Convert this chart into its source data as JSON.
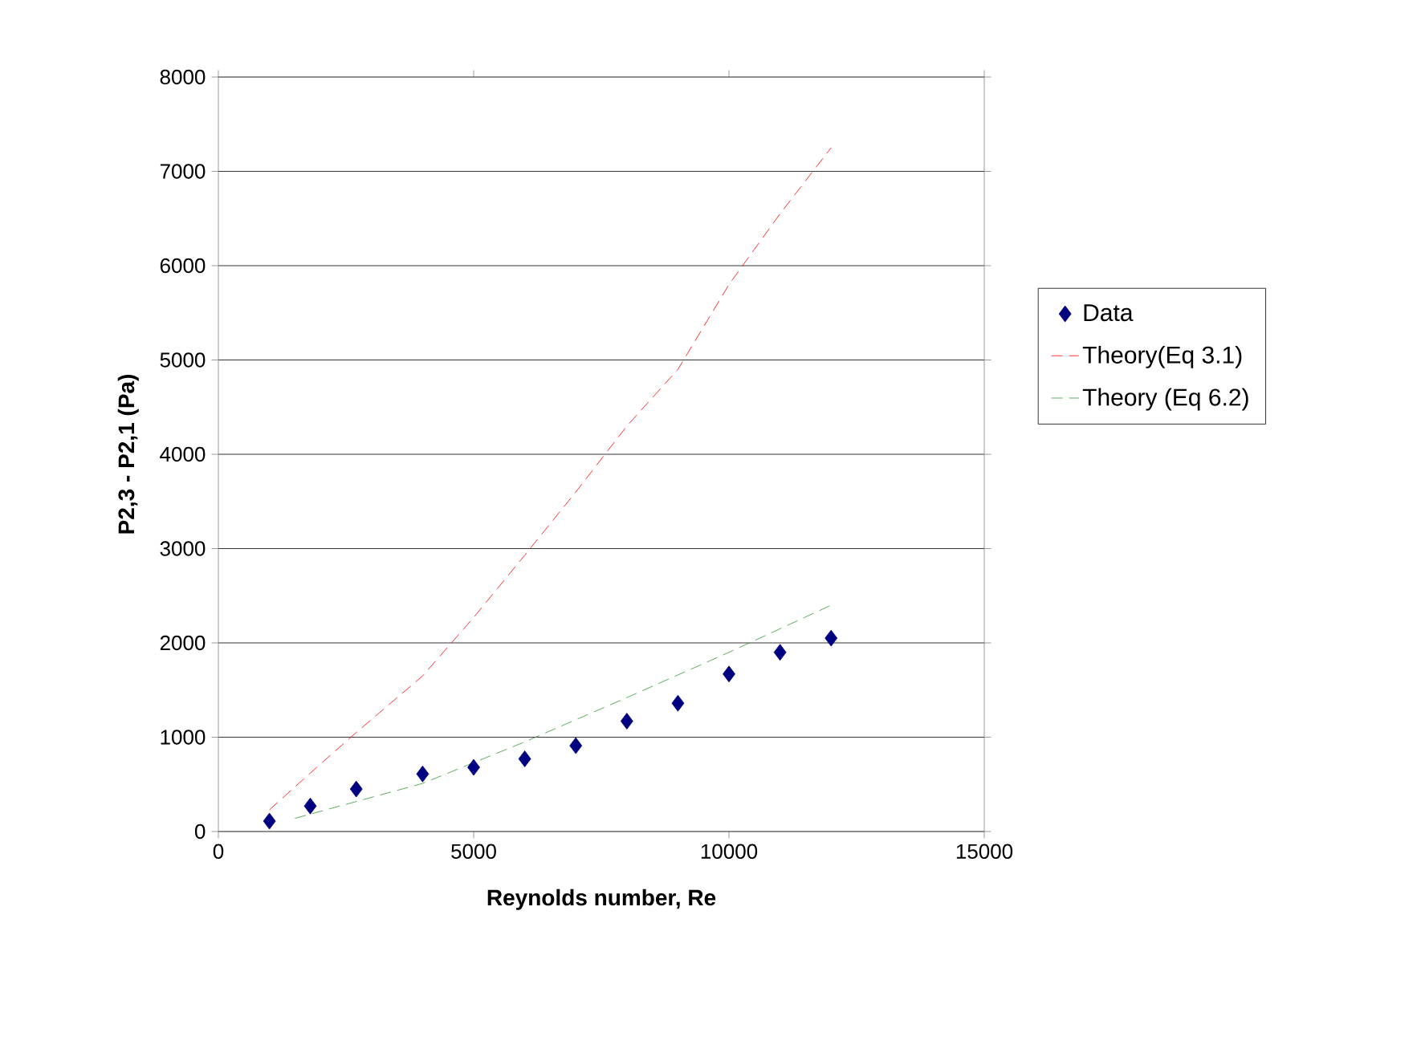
{
  "chart_data": {
    "type": "scatter",
    "xlabel": "Reynolds number, Re",
    "ylabel": "P2,3 - P2,1 (Pa)",
    "xlim": [
      0,
      15000
    ],
    "xticks": [
      0,
      5000,
      10000,
      15000
    ],
    "ylim": [
      0,
      8000
    ],
    "yticks": [
      0,
      1000,
      2000,
      3000,
      4000,
      5000,
      6000,
      7000,
      8000
    ],
    "grid": "y",
    "legend": "right",
    "series": [
      {
        "name": "Data",
        "marker": "diamond",
        "color": "#000080",
        "x": [
          1000,
          1800,
          2700,
          4000,
          5000,
          6000,
          7000,
          8000,
          9000,
          10000,
          11000,
          12000
        ],
        "values": [
          110,
          270,
          450,
          610,
          680,
          770,
          910,
          1170,
          1360,
          1670,
          1900,
          2050
        ]
      },
      {
        "name": "Theory(Eq 3.1)",
        "type": "line",
        "line_style": "dashed",
        "color": "#ff0000",
        "x": [
          1000,
          1800,
          2700,
          4000,
          5000,
          6000,
          7000,
          8000,
          9000,
          10000,
          11000,
          12000
        ],
        "values": [
          230,
          620,
          1050,
          1650,
          2270,
          2930,
          3600,
          4300,
          4900,
          5800,
          6550,
          7250
        ]
      },
      {
        "name": "Theory (Eq 6.2)",
        "type": "line",
        "line_style": "dashed",
        "color": "#339933",
        "x": [
          1500,
          4000,
          6000,
          8000,
          10000,
          12000
        ],
        "values": [
          140,
          510,
          950,
          1420,
          1900,
          2400
        ]
      }
    ]
  }
}
